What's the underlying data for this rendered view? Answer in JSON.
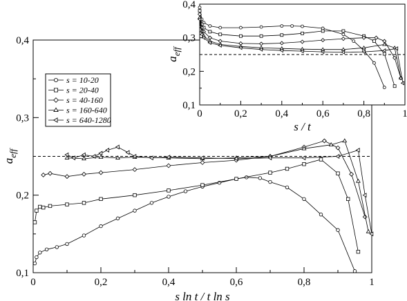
{
  "chart_data": [
    {
      "id": "main",
      "type": "line",
      "xlabel": "s ln t / t ln s",
      "ylabel_main": "a",
      "ylabel_sub": "eff",
      "xlim": [
        0,
        1
      ],
      "ylim": [
        0.1,
        0.4
      ],
      "xticks": [
        0,
        0.2,
        0.4,
        0.6,
        0.8,
        1
      ],
      "xtick_labels": [
        "0",
        "0,2",
        "0,4",
        "0,6",
        "0,8",
        "1"
      ],
      "yticks": [
        0.1,
        0.2,
        0.3,
        0.4
      ],
      "ytick_labels": [
        "0,1",
        "0,2",
        "0,3",
        "0,4"
      ],
      "reference_line": 0.25,
      "legend_position": "top-left",
      "series": [
        {
          "name": "s = 10-20",
          "marker": "circle",
          "x": [
            0.005,
            0.01,
            0.02,
            0.04,
            0.07,
            0.1,
            0.15,
            0.2,
            0.25,
            0.3,
            0.35,
            0.4,
            0.45,
            0.5,
            0.55,
            0.6,
            0.63,
            0.67,
            0.7,
            0.75,
            0.8,
            0.85,
            0.9,
            0.95
          ],
          "y": [
            0.112,
            0.12,
            0.126,
            0.13,
            0.133,
            0.137,
            0.148,
            0.16,
            0.17,
            0.18,
            0.19,
            0.198,
            0.205,
            0.211,
            0.216,
            0.221,
            0.223,
            0.222,
            0.217,
            0.21,
            0.195,
            0.175,
            0.155,
            0.102
          ]
        },
        {
          "name": "s = 20-40",
          "marker": "square",
          "x": [
            0.005,
            0.01,
            0.02,
            0.03,
            0.05,
            0.1,
            0.15,
            0.2,
            0.3,
            0.4,
            0.5,
            0.6,
            0.7,
            0.75,
            0.8,
            0.85,
            0.9,
            0.93,
            0.96
          ],
          "y": [
            0.165,
            0.18,
            0.185,
            0.184,
            0.186,
            0.188,
            0.19,
            0.195,
            0.2,
            0.206,
            0.213,
            0.221,
            0.229,
            0.234,
            0.24,
            0.246,
            0.228,
            0.195,
            0.127
          ]
        },
        {
          "name": "s = 40-160",
          "marker": "diamond",
          "x": [
            0.03,
            0.05,
            0.1,
            0.15,
            0.2,
            0.3,
            0.4,
            0.5,
            0.6,
            0.7,
            0.8,
            0.86,
            0.9,
            0.94,
            0.98
          ],
          "y": [
            0.226,
            0.228,
            0.224,
            0.227,
            0.229,
            0.233,
            0.238,
            0.242,
            0.245,
            0.25,
            0.262,
            0.27,
            0.261,
            0.227,
            0.172
          ]
        },
        {
          "name": "s = 160-640",
          "marker": "triangle-up",
          "x": [
            0.1,
            0.15,
            0.2,
            0.25,
            0.3,
            0.4,
            0.5,
            0.6,
            0.7,
            0.8,
            0.88,
            0.92,
            0.96,
            0.99
          ],
          "y": [
            0.248,
            0.247,
            0.249,
            0.248,
            0.249,
            0.248,
            0.247,
            0.248,
            0.25,
            0.26,
            0.265,
            0.27,
            0.218,
            0.153
          ]
        },
        {
          "name": "s = 640-1280",
          "marker": "triangle-left",
          "x": [
            0.1,
            0.12,
            0.15,
            0.18,
            0.2,
            0.22,
            0.25,
            0.28,
            0.3,
            0.35,
            0.4,
            0.5,
            0.6,
            0.7,
            0.8,
            0.9,
            0.96,
            0.98,
            1.0
          ],
          "y": [
            0.252,
            0.248,
            0.252,
            0.25,
            0.254,
            0.258,
            0.262,
            0.255,
            0.25,
            0.248,
            0.249,
            0.248,
            0.247,
            0.248,
            0.248,
            0.25,
            0.258,
            0.2,
            0.15
          ]
        }
      ]
    },
    {
      "id": "inset",
      "type": "line",
      "xlabel": "s / t",
      "ylabel_main": "a",
      "ylabel_sub": "eff",
      "xlim": [
        0,
        1
      ],
      "ylim": [
        0.1,
        0.4
      ],
      "xticks": [
        0,
        0.2,
        0.4,
        0.6,
        0.8,
        1
      ],
      "xtick_labels": [
        "0",
        "0,2",
        "0,4",
        "0,6",
        "0,8",
        "1"
      ],
      "yticks": [
        0.1,
        0.2,
        0.3,
        0.4
      ],
      "ytick_labels": [
        "0,1",
        "0,2",
        "0,3",
        "0,4"
      ],
      "reference_line": 0.25,
      "series": [
        {
          "name": "s = 10-20",
          "marker": "circle",
          "x": [
            0.0,
            0.01,
            0.02,
            0.05,
            0.1,
            0.2,
            0.3,
            0.4,
            0.45,
            0.5,
            0.6,
            0.7,
            0.75,
            0.8,
            0.85,
            0.9
          ],
          "y": [
            0.39,
            0.355,
            0.345,
            0.335,
            0.33,
            0.33,
            0.332,
            0.335,
            0.335,
            0.334,
            0.328,
            0.31,
            0.29,
            0.262,
            0.225,
            0.152
          ]
        },
        {
          "name": "s = 20-40",
          "marker": "square",
          "x": [
            0.0,
            0.01,
            0.02,
            0.05,
            0.1,
            0.2,
            0.3,
            0.4,
            0.5,
            0.6,
            0.7,
            0.8,
            0.85,
            0.9,
            0.95
          ],
          "y": [
            0.38,
            0.34,
            0.33,
            0.318,
            0.31,
            0.305,
            0.305,
            0.308,
            0.313,
            0.32,
            0.32,
            0.305,
            0.29,
            0.252,
            0.156
          ]
        },
        {
          "name": "s = 40-160",
          "marker": "diamond",
          "x": [
            0.0,
            0.01,
            0.02,
            0.05,
            0.1,
            0.2,
            0.3,
            0.4,
            0.5,
            0.6,
            0.7,
            0.8,
            0.86,
            0.9,
            0.95,
            0.98
          ],
          "y": [
            0.37,
            0.33,
            0.318,
            0.3,
            0.29,
            0.283,
            0.282,
            0.284,
            0.288,
            0.293,
            0.297,
            0.3,
            0.3,
            0.29,
            0.24,
            0.18
          ]
        },
        {
          "name": "s = 160-640",
          "marker": "triangle-up",
          "x": [
            0.0,
            0.01,
            0.02,
            0.05,
            0.1,
            0.2,
            0.3,
            0.4,
            0.5,
            0.6,
            0.7,
            0.8,
            0.9,
            0.95,
            0.98
          ],
          "y": [
            0.36,
            0.32,
            0.305,
            0.29,
            0.28,
            0.274,
            0.27,
            0.268,
            0.266,
            0.265,
            0.265,
            0.27,
            0.28,
            0.27,
            0.18
          ]
        },
        {
          "name": "s = 640-1280",
          "marker": "triangle-left",
          "x": [
            0.0,
            0.01,
            0.02,
            0.05,
            0.1,
            0.2,
            0.3,
            0.4,
            0.5,
            0.6,
            0.7,
            0.8,
            0.9,
            0.96,
            0.99
          ],
          "y": [
            0.355,
            0.31,
            0.3,
            0.285,
            0.277,
            0.27,
            0.265,
            0.262,
            0.26,
            0.258,
            0.257,
            0.258,
            0.262,
            0.268,
            0.165
          ]
        }
      ]
    }
  ]
}
